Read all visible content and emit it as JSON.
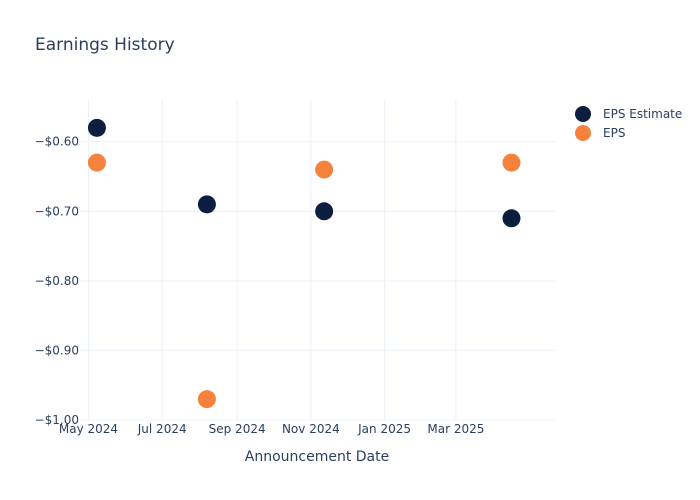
{
  "chart_data": {
    "type": "scatter",
    "title": "Earnings History",
    "xlabel": "Announcement Date",
    "ylabel": "",
    "grid": true,
    "legend_position": "top-right",
    "x_ticks": [
      "May 2024",
      "Jul 2024",
      "Sep 2024",
      "Nov 2024",
      "Jan 2025",
      "Mar 2025"
    ],
    "x_tick_dates": [
      "2024-05-01",
      "2024-07-01",
      "2024-09-01",
      "2024-11-01",
      "2025-01-01",
      "2025-03-01"
    ],
    "xlim": [
      "2024-04-24",
      "2025-05-22"
    ],
    "y_ticks": [
      "−$0.60",
      "−$0.70",
      "−$0.80",
      "−$0.90",
      "−$1.00"
    ],
    "y_tick_values": [
      -0.6,
      -0.7,
      -0.8,
      -0.9,
      -1.0
    ],
    "ylim": [
      -1.0,
      -0.54
    ],
    "x": [
      "2024-05-08",
      "2024-08-07",
      "2024-11-12",
      "2025-04-16"
    ],
    "series": [
      {
        "name": "EPS Estimate",
        "color": "#0b1e3f",
        "values": [
          -0.58,
          -0.69,
          -0.7,
          -0.71
        ]
      },
      {
        "name": "EPS",
        "color": "#f5823c",
        "values": [
          -0.63,
          -0.97,
          -0.64,
          -0.63
        ]
      }
    ]
  }
}
